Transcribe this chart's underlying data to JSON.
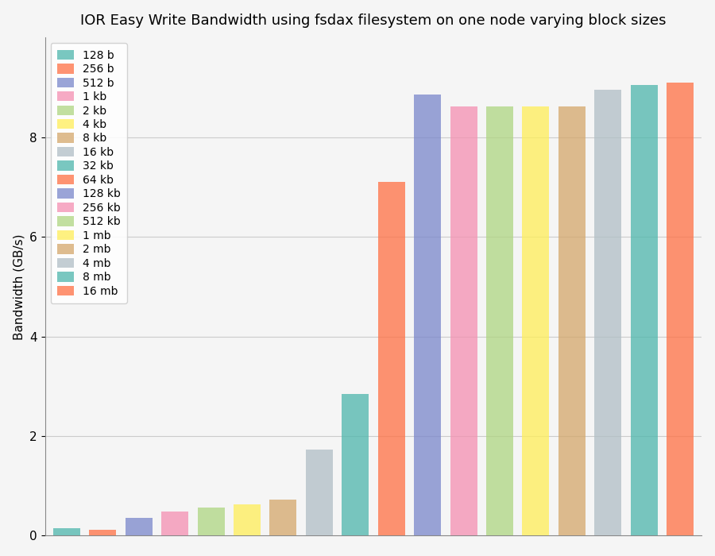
{
  "title": "IOR Easy Write Bandwidth using fsdax filesystem on one node varying block sizes",
  "ylabel": "Bandwidth (GB/s)",
  "ylim": [
    0,
    10
  ],
  "yticks": [
    0,
    2,
    4,
    6,
    8
  ],
  "categories": [
    "128 b",
    "256 b",
    "512 b",
    "1 kb",
    "2 kb",
    "4 kb",
    "8 kb",
    "16 kb",
    "32 kb",
    "64 kb",
    "128 kb",
    "256 kb",
    "512 kb",
    "1 mb",
    "2 mb",
    "4 mb",
    "8 mb",
    "16 mb"
  ],
  "bar_colors": {
    "128 b": "#4db6ac",
    "256 b": "#ff7043",
    "512 b": "#7986cb",
    "1 kb": "#f48fb1",
    "2 kb": "#aed581",
    "4 kb": "#ffee58",
    "8 kb": "#d4a76a",
    "16 kb": "#b0bec5",
    "32 kb": "#4db6ac",
    "64 kb": "#ff7043",
    "128 kb": "#7986cb",
    "256 kb": "#f48fb1",
    "512 kb": "#aed581",
    "1 mb": "#ffee58",
    "2 mb": "#d4a76a",
    "4 mb": "#b0bec5",
    "8 mb": "#4db6ac",
    "16 mb": "#ff7043"
  },
  "bar_values": {
    "128 b": 0.15,
    "256 b": 0.12,
    "512 b": 0.35,
    "1 kb": 0.48,
    "2 kb": 0.57,
    "4 kb": 0.63,
    "8 kb": 0.72,
    "16 kb": 1.72,
    "32 kb": 2.85,
    "64 kb": 7.1,
    "128 kb": 8.85,
    "256 kb": 8.62,
    "512 kb": 8.62,
    "1 mb": 8.62,
    "2 mb": 8.62,
    "4 mb": 8.95,
    "8 mb": 9.05,
    "16 mb": 9.1
  },
  "background_color": "#f5f5f5",
  "grid_color": "#cccccc",
  "bar_width": 0.75,
  "title_fontsize": 13,
  "axis_fontsize": 11,
  "tick_fontsize": 11,
  "legend_fontsize": 10,
  "alpha": 0.75
}
